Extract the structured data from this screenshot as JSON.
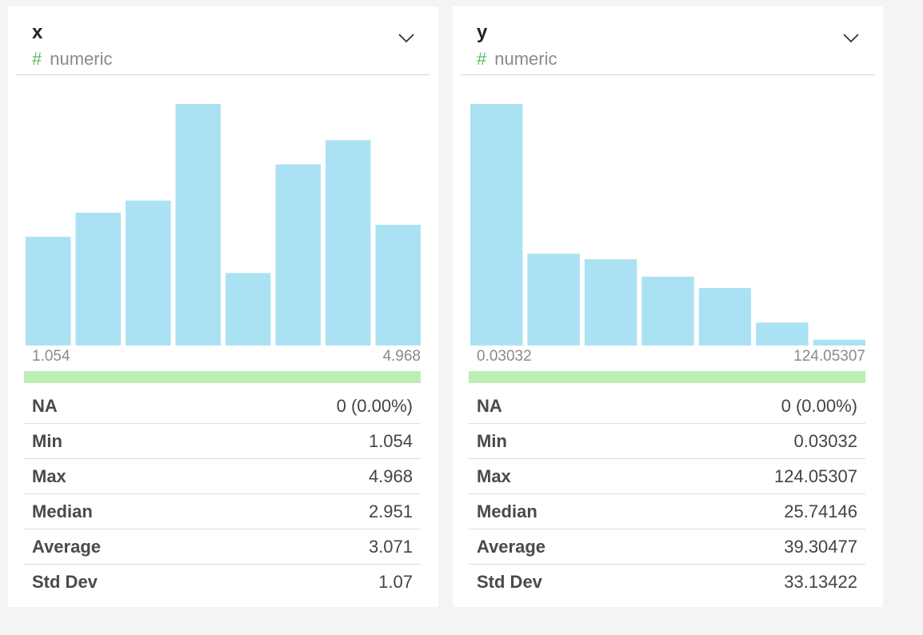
{
  "columns": [
    {
      "name": "x",
      "type_label": "numeric",
      "type_icon": "hash-icon",
      "range_min_label": "1.054",
      "range_max_label": "4.968",
      "stats": [
        {
          "label": "NA",
          "value": "0 (0.00%)"
        },
        {
          "label": "Min",
          "value": "1.054"
        },
        {
          "label": "Max",
          "value": "4.968"
        },
        {
          "label": "Median",
          "value": "2.951"
        },
        {
          "label": "Average",
          "value": "3.071"
        },
        {
          "label": "Std Dev",
          "value": "1.07"
        }
      ]
    },
    {
      "name": "y",
      "type_label": "numeric",
      "type_icon": "hash-icon",
      "range_min_label": "0.03032",
      "range_max_label": "124.05307",
      "stats": [
        {
          "label": "NA",
          "value": "0 (0.00%)"
        },
        {
          "label": "Min",
          "value": "0.03032"
        },
        {
          "label": "Max",
          "value": "124.05307"
        },
        {
          "label": "Median",
          "value": "25.74146"
        },
        {
          "label": "Average",
          "value": "39.30477"
        },
        {
          "label": "Std Dev",
          "value": "33.13422"
        }
      ]
    }
  ],
  "chart_data": [
    {
      "type": "bar",
      "title": "",
      "xlabel": "",
      "ylabel": "",
      "x_range": [
        1.054,
        4.968
      ],
      "values": [
        0.45,
        0.55,
        0.6,
        1.0,
        0.3,
        0.75,
        0.85,
        0.5
      ],
      "values_unit": "relative to tallest bin",
      "color": "#abe2f3"
    },
    {
      "type": "bar",
      "title": "",
      "xlabel": "",
      "ylabel": "",
      "x_range": [
        0.03032,
        124.05307
      ],
      "values": [
        1.0,
        0.38,
        0.357,
        0.285,
        0.238,
        0.095,
        0.024
      ],
      "values_unit": "relative to tallest bin",
      "color": "#abe2f3"
    }
  ],
  "colors": {
    "bar": "#abe2f3",
    "valid_bar": "#bdeeb4",
    "type_icon": "#5cb85c"
  }
}
